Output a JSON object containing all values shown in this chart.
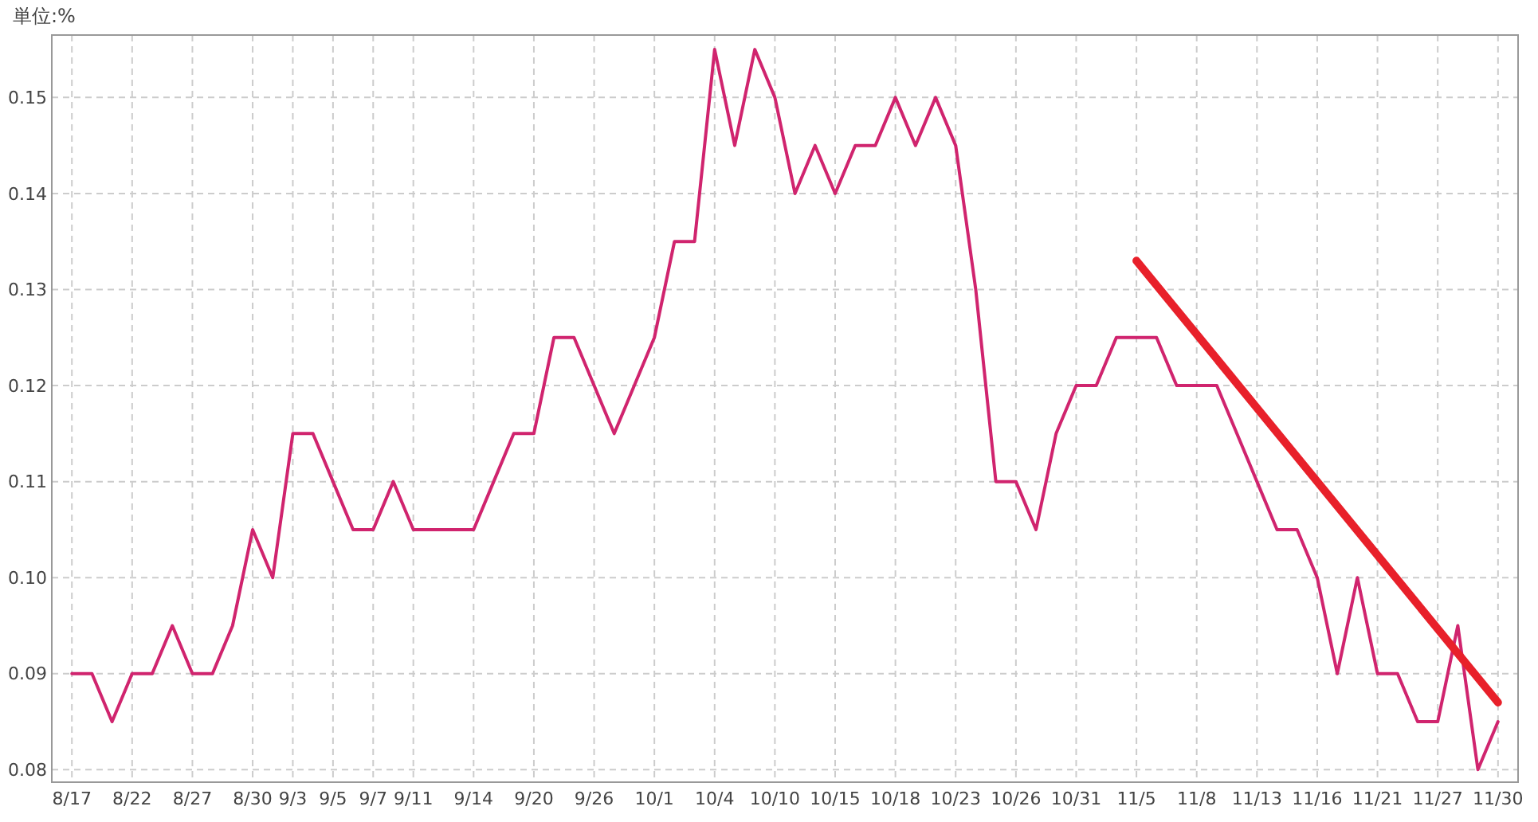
{
  "chart_data": {
    "type": "line",
    "ylabel": "単位:%",
    "categories": [
      "8/17",
      null,
      null,
      "8/22",
      null,
      null,
      "8/27",
      null,
      null,
      "8/30",
      null,
      "9/3",
      null,
      "9/5",
      null,
      "9/7",
      null,
      "9/11",
      null,
      null,
      "9/14",
      null,
      null,
      "9/20",
      null,
      null,
      "9/26",
      null,
      null,
      "10/1",
      null,
      null,
      "10/4",
      null,
      null,
      "10/10",
      null,
      null,
      "10/15",
      null,
      null,
      "10/18",
      null,
      null,
      "10/23",
      null,
      null,
      "10/26",
      null,
      null,
      "10/31",
      null,
      null,
      "11/5",
      null,
      null,
      "11/8",
      null,
      null,
      "11/13",
      null,
      null,
      "11/16",
      null,
      null,
      "11/21",
      null,
      null,
      "11/27",
      null,
      null,
      "11/30"
    ],
    "series": [
      {
        "color": "#d0246e",
        "values": [
          0.09,
          0.09,
          0.085,
          0.09,
          0.09,
          0.095,
          0.09,
          0.09,
          0.095,
          0.105,
          0.1,
          0.115,
          0.115,
          0.11,
          0.105,
          0.105,
          0.11,
          0.105,
          0.105,
          0.105,
          0.105,
          0.11,
          0.115,
          0.115,
          0.125,
          0.125,
          0.12,
          0.115,
          0.12,
          0.125,
          0.135,
          0.135,
          0.155,
          0.145,
          0.155,
          0.15,
          0.14,
          0.145,
          0.14,
          0.145,
          0.145,
          0.15,
          0.145,
          0.15,
          0.145,
          0.13,
          0.11,
          0.11,
          0.105,
          0.115,
          0.12,
          0.12,
          0.125,
          0.125,
          0.125,
          0.12,
          0.12,
          0.12,
          0.115,
          0.11,
          0.105,
          0.105,
          0.1,
          0.09,
          0.1,
          0.09,
          0.09,
          0.085,
          0.085,
          0.095,
          0.08,
          0.085
        ]
      },
      {
        "type": "line",
        "color": "#e8202a",
        "x": [
          "11/5",
          "11/30"
        ],
        "values": [
          0.133,
          0.087
        ]
      }
    ],
    "ylim": [
      0.0787,
      0.1565
    ],
    "yticks": [
      0.08,
      0.09,
      {
        "value": 0.1,
        "label": "0.10"
      },
      0.11,
      0.12,
      0.13,
      0.14,
      0.15
    ],
    "grid": true,
    "line_style": "solid",
    "marker": "none"
  }
}
